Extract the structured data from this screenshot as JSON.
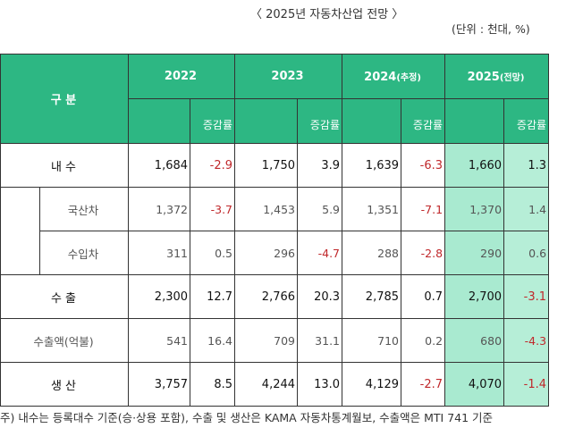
{
  "title": "〈 2025년 자동차산업 전망 〉",
  "unit": "(단위 : 천대, %)",
  "header": {
    "category": "구  분",
    "years": [
      {
        "year": "2022",
        "note": ""
      },
      {
        "year": "2023",
        "note": ""
      },
      {
        "year": "2024",
        "note": "(추정)"
      },
      {
        "year": "2025",
        "note": "(전망)"
      }
    ],
    "change_label": "증감률"
  },
  "rows": [
    {
      "label": "내 수",
      "sub": false,
      "cells": [
        {
          "v": "1,684",
          "c": "-2.9"
        },
        {
          "v": "1,750",
          "c": "3.9"
        },
        {
          "v": "1,639",
          "c": "-6.3"
        },
        {
          "v": "1,660",
          "c": "1.3"
        }
      ]
    },
    {
      "label": "국산차",
      "sub": true,
      "cells": [
        {
          "v": "1,372",
          "c": "-3.7"
        },
        {
          "v": "1,453",
          "c": "5.9"
        },
        {
          "v": "1,351",
          "c": "-7.1"
        },
        {
          "v": "1,370",
          "c": "1.4"
        }
      ]
    },
    {
      "label": "수입차",
      "sub": true,
      "cells": [
        {
          "v": "311",
          "c": "0.5"
        },
        {
          "v": "296",
          "c": "-4.7"
        },
        {
          "v": "288",
          "c": "-2.8"
        },
        {
          "v": "290",
          "c": "0.6"
        }
      ]
    },
    {
      "label": "수 출",
      "sub": false,
      "cells": [
        {
          "v": "2,300",
          "c": "12.7"
        },
        {
          "v": "2,766",
          "c": "20.3"
        },
        {
          "v": "2,785",
          "c": "0.7"
        },
        {
          "v": "2,700",
          "c": "-3.1"
        }
      ]
    },
    {
      "label": "수출액(억불)",
      "sub": false,
      "gray": true,
      "cells": [
        {
          "v": "541",
          "c": "16.4"
        },
        {
          "v": "709",
          "c": "31.1"
        },
        {
          "v": "710",
          "c": "0.2"
        },
        {
          "v": "680",
          "c": "-4.3"
        }
      ]
    },
    {
      "label": "생 산",
      "sub": false,
      "cells": [
        {
          "v": "3,757",
          "c": "8.5"
        },
        {
          "v": "4,244",
          "c": "13.0"
        },
        {
          "v": "4,129",
          "c": "-2.7"
        },
        {
          "v": "4,070",
          "c": "-1.4"
        }
      ]
    }
  ],
  "footnote": "주) 내수는 등록대수 기준(승·상용 포함), 수출 및 생산은 KAMA 자동차통계월보, 수출액은 MTI 741 기준"
}
